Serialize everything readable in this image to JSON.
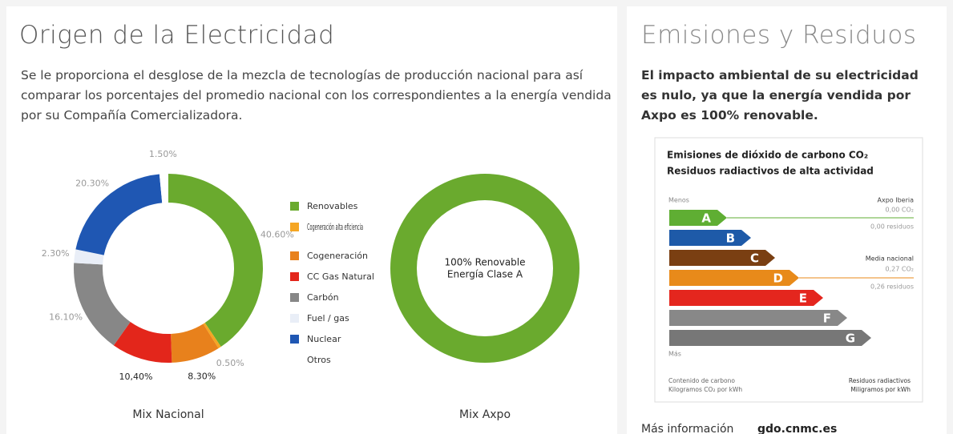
{
  "left": {
    "title": "Origen de la Electricidad",
    "text": "Se le proporciona el desglose de la mezcla de tecnologías de producción nacional para así comparar los porcentajes del promedio nacional con los correspondientes a la energía vendida por su Compañía Comercializadora."
  },
  "chart_data": [
    {
      "type": "pie",
      "caption": "Mix Nacional",
      "categories": [
        "Renovables",
        "Cogeneración alta eficiencia",
        "Cogeneración",
        "CC Gas Natural",
        "Carbón",
        "Fuel / gas",
        "Nuclear",
        "Otros"
      ],
      "values": [
        40.6,
        0.5,
        8.3,
        10.4,
        16.1,
        2.3,
        20.3,
        1.5
      ],
      "value_labels": [
        "40.60%",
        "0.50%",
        "8.30%",
        "10,40%",
        "16.10%",
        "2.30%",
        "20.30%",
        "1.50%"
      ],
      "colors": [
        "#6aaa2e",
        "#f5a623",
        "#e8811c",
        "#e3261b",
        "#878787",
        "#e9eef7",
        "#1f57b3",
        "#ffffff"
      ]
    },
    {
      "type": "pie",
      "caption": "Mix Axpo",
      "values": [
        100
      ],
      "colors": [
        "#6aaa2e"
      ],
      "center_label": [
        "100% Renovable",
        "Energía Clase A"
      ]
    }
  ],
  "right": {
    "title": "Emisiones y Residuos",
    "text": "El impacto ambiental de su electricidad es nulo, ya que la energía vendida por Axpo es 100% renovable.",
    "label_chart": {
      "title_lines": [
        "Emisiones de dióxido de carbono CO₂",
        "Residuos radiactivos de alta actividad"
      ],
      "less": "Menos",
      "more": "Más",
      "ratings": [
        "A",
        "B",
        "C",
        "D",
        "E",
        "F",
        "G"
      ],
      "axpo": [
        "Axpo Iberia",
        "0,00 CO₂",
        "0,00 residuos"
      ],
      "media": [
        "Media nacional",
        "0,27 CO₂",
        "0,26 residuos"
      ],
      "footer_left": [
        "Contenido de carbono",
        "Kilogramos CO₂ por kWh"
      ],
      "footer_right": [
        "Residuos radiactivos",
        "Miligramos por kWh"
      ]
    },
    "more_info": {
      "label": "Más información",
      "link": "gdo.cnmc.es"
    }
  }
}
